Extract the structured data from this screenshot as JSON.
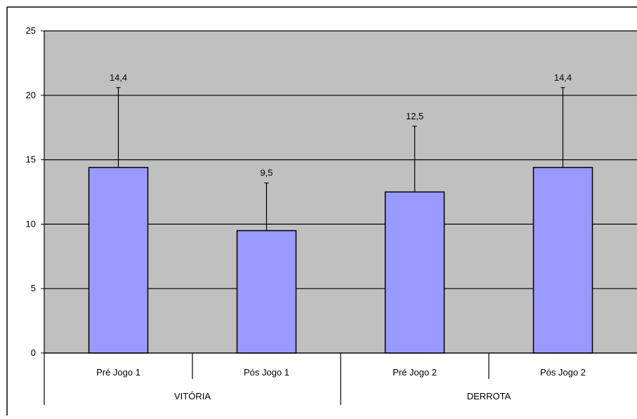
{
  "chart_data": {
    "type": "bar",
    "categories": [
      "Pré Jogo 1",
      "Pós Jogo 1",
      "Pré Jogo 2",
      "Pós Jogo 2"
    ],
    "groups": [
      {
        "label": "VITÓRIA",
        "categories": [
          "Pré Jogo 1",
          "Pós Jogo 1"
        ]
      },
      {
        "label": "DERROTA",
        "categories": [
          "Pré Jogo 2",
          "Pós Jogo 2"
        ]
      }
    ],
    "values": [
      14.4,
      9.5,
      12.5,
      14.4
    ],
    "data_labels": [
      "14,4",
      "9,5",
      "12,5",
      "14,4"
    ],
    "error_upper": [
      20.6,
      13.2,
      17.6,
      20.6
    ],
    "ylim": [
      0,
      25
    ],
    "yticks": [
      0,
      5,
      10,
      15,
      20,
      25
    ],
    "ytick_labels": [
      "0",
      "5",
      "10",
      "15",
      "20",
      "25"
    ],
    "grid": true,
    "legend": "none",
    "title": "",
    "xlabel": "",
    "ylabel": "",
    "colors": {
      "bar_fill": "#9999ff",
      "bar_stroke": "#000000",
      "plot_background": "#c0c0c0",
      "gridline": "#000000",
      "error_bar": "#000000"
    }
  }
}
